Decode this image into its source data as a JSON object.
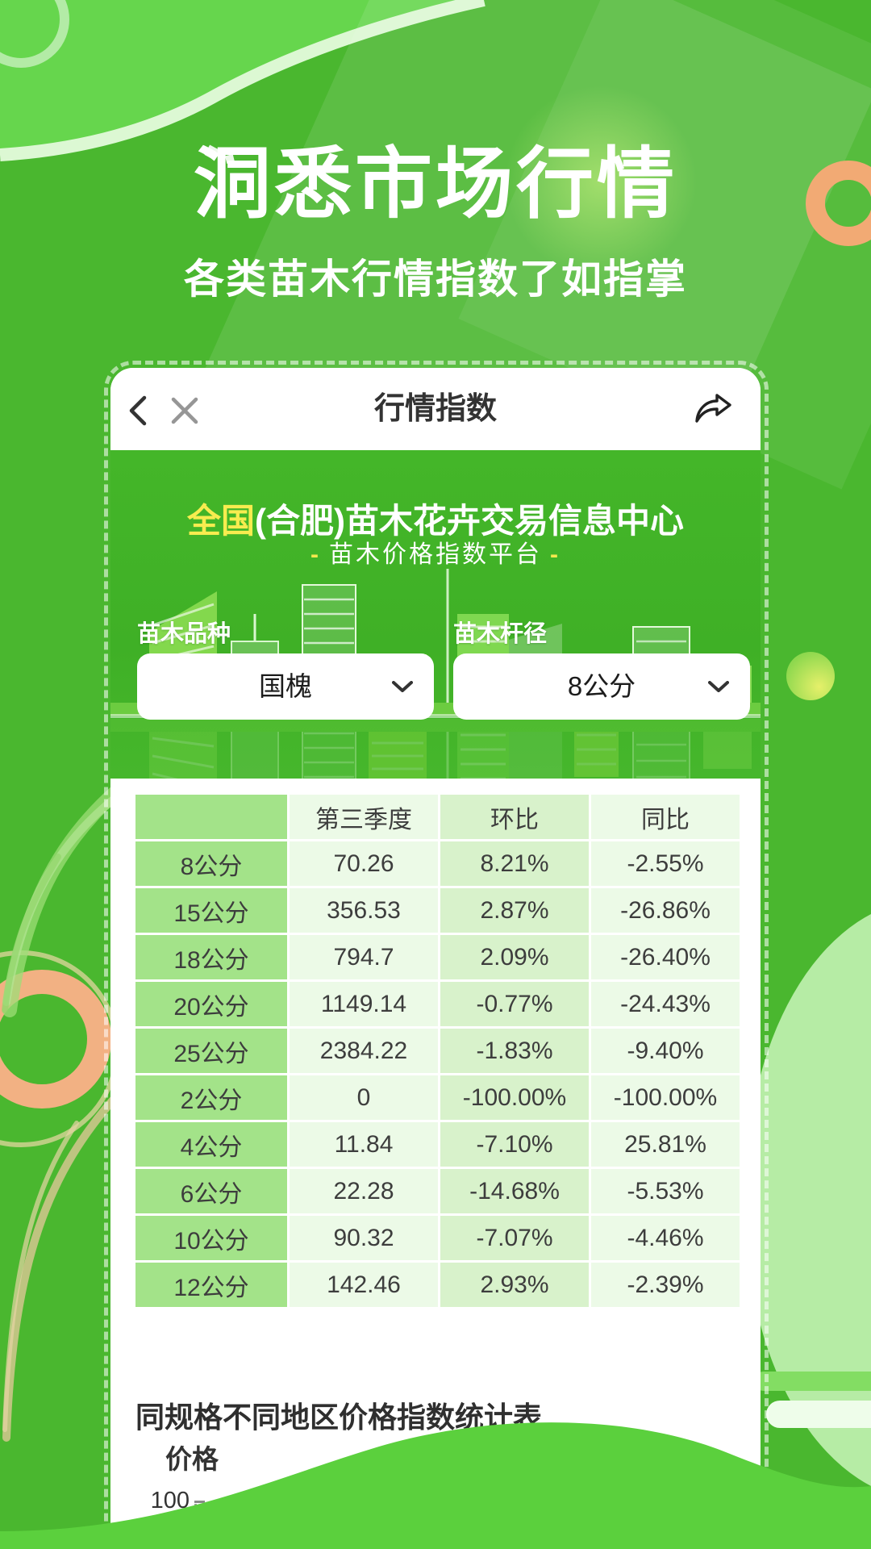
{
  "page": {
    "title": "洞悉市场行情",
    "subtitle": "各类苗木行情指数了如指掌"
  },
  "card": {
    "nav": {
      "title": "行情指数",
      "icons": [
        "back-icon",
        "close-icon",
        "share-icon"
      ]
    },
    "banner": {
      "title_highlight": "全国",
      "title_rest": "(合肥)苗木花卉交易信息中心",
      "subtitle_dash": "-",
      "subtitle": "苗木价格指数平台",
      "filters": [
        {
          "label": "苗木品种",
          "value": "国槐",
          "icon": "chevron-down-icon"
        },
        {
          "label": "苗木杆径",
          "value": "8公分",
          "icon": "chevron-down-icon"
        }
      ]
    },
    "table": {
      "headers": [
        "",
        "第三季度",
        "环比",
        "同比"
      ],
      "rows": [
        [
          "8公分",
          "70.26",
          "8.21%",
          "-2.55%"
        ],
        [
          "15公分",
          "356.53",
          "2.87%",
          "-26.86%"
        ],
        [
          "18公分",
          "794.7",
          "2.09%",
          "-26.40%"
        ],
        [
          "20公分",
          "1149.14",
          "-0.77%",
          "-24.43%"
        ],
        [
          "25公分",
          "2384.22",
          "-1.83%",
          "-9.40%"
        ],
        [
          "2公分",
          "0",
          "-100.00%",
          "-100.00%"
        ],
        [
          "4公分",
          "11.84",
          "-7.10%",
          "25.81%"
        ],
        [
          "6公分",
          "22.28",
          "-14.68%",
          "-5.53%"
        ],
        [
          "10公分",
          "90.32",
          "-7.07%",
          "-4.46%"
        ],
        [
          "12公分",
          "142.46",
          "2.93%",
          "-2.39%"
        ]
      ]
    },
    "section": {
      "heading": "同规格不同地区价格指数统计表",
      "chart_axis": {
        "ylabel": "价格",
        "first_tick": "100"
      }
    }
  },
  "colors": {
    "background_green": "#4ab72f",
    "banner_green": "#3fb026",
    "highlight_yellow": "#f7ec4f",
    "table_label_column": "#a3e389",
    "table_light_column": "#ecfae7",
    "table_mid_column": "#d8f2cb",
    "wave_green": "#5bd03d",
    "accent_orange_ring": "#f2aa74"
  }
}
